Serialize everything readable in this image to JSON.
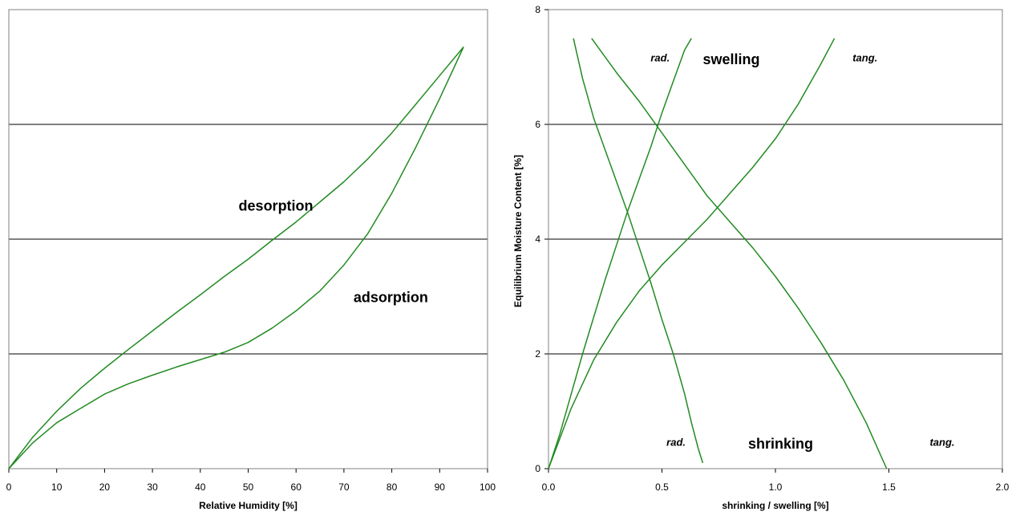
{
  "chart_data": [
    {
      "type": "line",
      "xlabel": "Relative Humidity [%]",
      "ylabel": "",
      "xlim": [
        0,
        100
      ],
      "ylim": [
        0,
        8
      ],
      "xticks": [
        0,
        10,
        20,
        30,
        40,
        50,
        60,
        70,
        80,
        90,
        100
      ],
      "yticks": [],
      "gridlines_y": [
        2,
        4,
        6
      ],
      "grid": "horizontal",
      "legend": "none",
      "line_color": "#228B22",
      "annotations": [
        {
          "text": "desorption",
          "style": "bold",
          "x": 48,
          "y": 4.5
        },
        {
          "text": "adsorption",
          "style": "bold",
          "x": 72,
          "y": 2.9
        }
      ],
      "series": [
        {
          "x": [
            0,
            5,
            10,
            15,
            20,
            25,
            30,
            35,
            40,
            45,
            50,
            55,
            60,
            65,
            70,
            75,
            80,
            85,
            90,
            95
          ],
          "y": [
            0,
            0.55,
            1.0,
            1.4,
            1.75,
            2.08,
            2.4,
            2.72,
            3.03,
            3.35,
            3.65,
            3.98,
            4.3,
            4.65,
            5.0,
            5.4,
            5.85,
            6.35,
            6.85,
            7.35
          ]
        },
        {
          "x": [
            0,
            5,
            10,
            15,
            20,
            25,
            30,
            35,
            40,
            45,
            50,
            55,
            60,
            65,
            70,
            75,
            80,
            85,
            90,
            95
          ],
          "y": [
            0,
            0.45,
            0.8,
            1.05,
            1.3,
            1.48,
            1.63,
            1.77,
            1.9,
            2.03,
            2.2,
            2.45,
            2.75,
            3.1,
            3.55,
            4.1,
            4.8,
            5.6,
            6.45,
            7.35
          ]
        }
      ]
    },
    {
      "type": "line",
      "xlabel": "shrinking / swelling [%]",
      "ylabel": "Equilibrium Moisture Content [%]",
      "xlim": [
        0,
        2
      ],
      "ylim": [
        0,
        8
      ],
      "xticks": [
        "0.0",
        "0.5",
        "1.0",
        "1.5",
        "2.0"
      ],
      "yticks": [
        "0",
        "2",
        "4",
        "6",
        "8"
      ],
      "gridlines_y": [
        2,
        4,
        6
      ],
      "grid": "horizontal",
      "legend": "none",
      "line_color": "#228B22",
      "annotations": [
        {
          "text": "rad.",
          "style": "italic",
          "x": 0.45,
          "y": 7.1
        },
        {
          "text": "swelling",
          "style": "bold",
          "x": 0.68,
          "y": 7.05
        },
        {
          "text": "tang.",
          "style": "italic",
          "x": 1.34,
          "y": 7.1
        },
        {
          "text": "rad.",
          "style": "italic",
          "x": 0.52,
          "y": 0.4
        },
        {
          "text": "shrinking",
          "style": "bold",
          "x": 0.88,
          "y": 0.35
        },
        {
          "text": "tang.",
          "style": "italic",
          "x": 1.68,
          "y": 0.4
        }
      ],
      "series": [
        {
          "x": [
            0,
            0.05,
            0.1,
            0.15,
            0.2,
            0.25,
            0.3,
            0.35,
            0.4,
            0.45,
            0.5,
            0.55,
            0.6,
            0.63
          ],
          "y": [
            0,
            0.6,
            1.3,
            2.0,
            2.65,
            3.3,
            3.9,
            4.5,
            5.05,
            5.6,
            6.2,
            6.75,
            7.3,
            7.5
          ]
        },
        {
          "x": [
            0,
            0.1,
            0.2,
            0.3,
            0.4,
            0.5,
            0.6,
            0.7,
            0.8,
            0.9,
            1.0,
            1.1,
            1.2,
            1.26
          ],
          "y": [
            0,
            1.05,
            1.9,
            2.55,
            3.1,
            3.55,
            3.95,
            4.35,
            4.8,
            5.25,
            5.75,
            6.35,
            7.05,
            7.5
          ]
        },
        {
          "x": [
            0.11,
            0.15,
            0.2,
            0.25,
            0.3,
            0.35,
            0.4,
            0.45,
            0.5,
            0.55,
            0.6,
            0.63,
            0.66,
            0.68
          ],
          "y": [
            7.5,
            6.8,
            6.1,
            5.55,
            5.0,
            4.45,
            3.85,
            3.25,
            2.6,
            2.0,
            1.3,
            0.8,
            0.35,
            0.1
          ]
        },
        {
          "x": [
            0.19,
            0.3,
            0.4,
            0.5,
            0.6,
            0.7,
            0.8,
            0.9,
            1.0,
            1.1,
            1.2,
            1.3,
            1.4,
            1.49
          ],
          "y": [
            7.5,
            6.9,
            6.4,
            5.85,
            5.3,
            4.75,
            4.3,
            3.85,
            3.35,
            2.8,
            2.2,
            1.55,
            0.8,
            0
          ]
        }
      ]
    }
  ]
}
